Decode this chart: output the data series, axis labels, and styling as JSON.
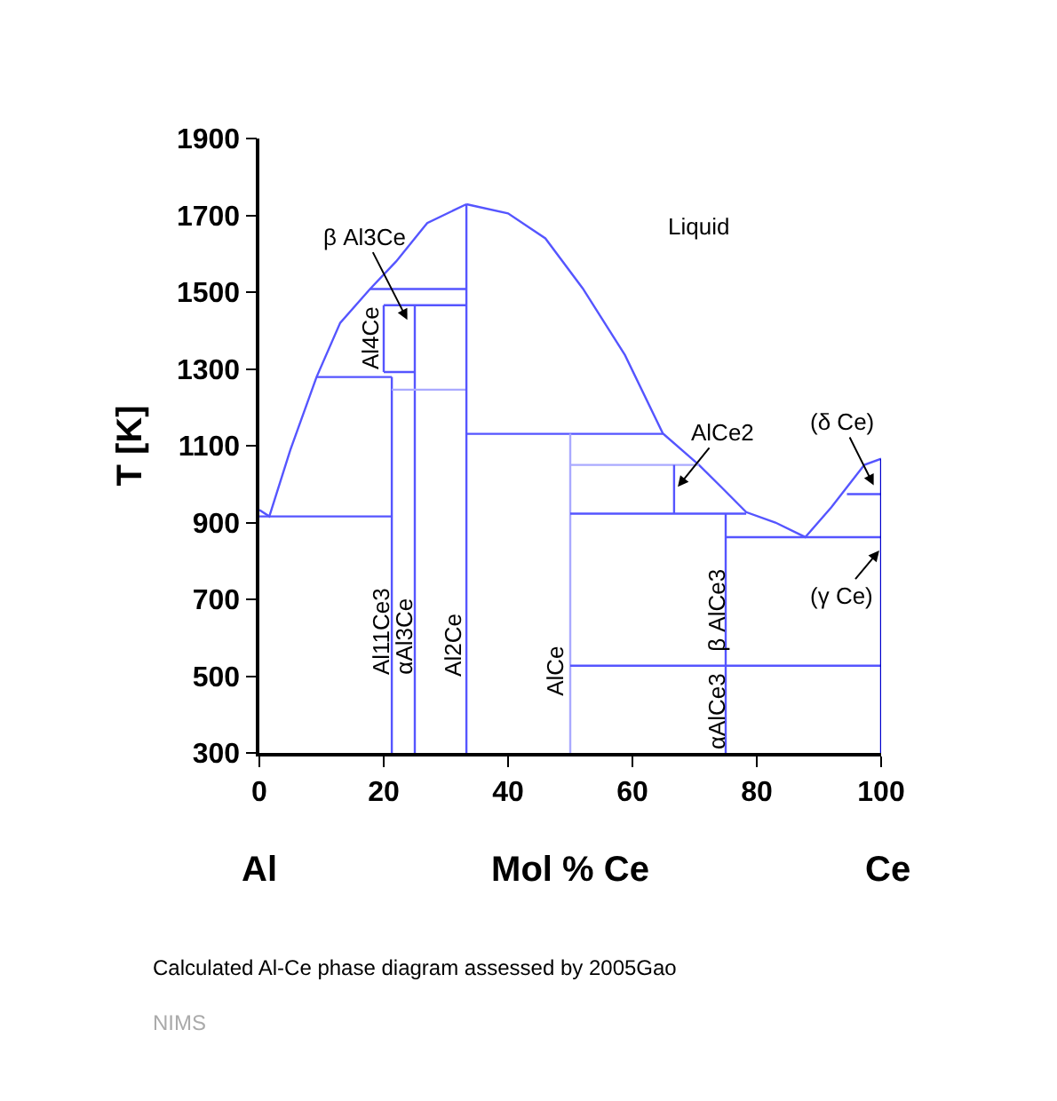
{
  "chart_data": {
    "type": "line",
    "xlabel": "Mol % Ce",
    "ylabel": "T [K]",
    "xlim": [
      0,
      100
    ],
    "xticks": [
      0,
      20,
      40,
      60,
      80,
      100
    ],
    "ylim": [
      300,
      1900
    ],
    "yticks": [
      300,
      500,
      700,
      900,
      1100,
      1300,
      1500,
      1700,
      1900
    ],
    "marker": "none",
    "line_style": "solid",
    "series": [
      {
        "color": "#5555ff",
        "x": [
          0,
          1.6,
          5,
          9.2,
          13,
          17.8,
          22,
          27,
          33.3
        ],
        "values": [
          933,
          916,
          1090,
          1279,
          1420,
          1508,
          1580,
          1680,
          1729
        ]
      },
      {
        "color": "#5555ff",
        "x": [
          33.3,
          40,
          46,
          52,
          58.8,
          64.9,
          70.7,
          74.5,
          78.3,
          83,
          87.8,
          92,
          97.3,
          100
        ],
        "values": [
          1729,
          1705,
          1640,
          1510,
          1336,
          1132,
          1050,
          989,
          927,
          900,
          862,
          940,
          1050,
          1066
        ]
      },
      {
        "color": "#5555ff",
        "x": [
          0,
          21.3
        ],
        "values": [
          916,
          916
        ]
      },
      {
        "color": "#5555ff",
        "x": [
          9.2,
          21.3
        ],
        "values": [
          1279,
          1279
        ]
      },
      {
        "color": "#5555ff",
        "x": [
          17.8,
          33.3
        ],
        "values": [
          1508,
          1508
        ]
      },
      {
        "color": "#5555ff",
        "x": [
          20,
          33.3
        ],
        "values": [
          1466,
          1466
        ]
      },
      {
        "color": "#5555ff",
        "x": [
          20,
          20
        ],
        "values": [
          1292,
          1466
        ]
      },
      {
        "color": "#5555ff",
        "x": [
          20,
          25
        ],
        "values": [
          1292,
          1292
        ]
      },
      {
        "color": "#5555ff",
        "x": [
          21.3,
          21.3
        ],
        "values": [
          300,
          1279
        ]
      },
      {
        "color": "#5555ff",
        "x": [
          25,
          25
        ],
        "values": [
          300,
          1466
        ]
      },
      {
        "color": "#aaaaff",
        "x": [
          21.3,
          33.3
        ],
        "values": [
          1246,
          1246
        ]
      },
      {
        "color": "#5555ff",
        "x": [
          33.3,
          33.3
        ],
        "values": [
          300,
          1729
        ]
      },
      {
        "color": "#5555ff",
        "x": [
          33.3,
          64.9
        ],
        "values": [
          1131,
          1131
        ]
      },
      {
        "color": "#aaaaff",
        "x": [
          50,
          50
        ],
        "values": [
          300,
          1131
        ]
      },
      {
        "color": "#aaaaff",
        "x": [
          50,
          70.7
        ],
        "values": [
          1050,
          1050
        ]
      },
      {
        "color": "#5555ff",
        "x": [
          66.7,
          66.7
        ],
        "values": [
          923,
          1050
        ]
      },
      {
        "color": "#5555ff",
        "x": [
          50,
          78.3
        ],
        "values": [
          923,
          923
        ]
      },
      {
        "color": "#5555ff",
        "x": [
          75,
          75
        ],
        "values": [
          300,
          923
        ]
      },
      {
        "color": "#5555ff",
        "x": [
          75,
          100
        ],
        "values": [
          862,
          862
        ]
      },
      {
        "color": "#5555ff",
        "x": [
          50,
          100
        ],
        "values": [
          527,
          527
        ]
      },
      {
        "color": "#5555ff",
        "x": [
          94.5,
          100
        ],
        "values": [
          974,
          974
        ]
      },
      {
        "color": "#0000cc",
        "x": [
          100,
          100
        ],
        "values": [
          300,
          1066
        ]
      }
    ],
    "annotations": [
      {
        "text": "β Al3Ce",
        "x": 23.8,
        "y": 1428
      },
      {
        "text": "AlCe2",
        "x": 67.3,
        "y": 993
      },
      {
        "text": "(δ Ce)",
        "x": 98.8,
        "y": 997
      },
      {
        "text": "(γ Ce)",
        "x": 99.7,
        "y": 827
      },
      "Liquid",
      "Al4Ce",
      "Al11Ce3",
      "αAl3Ce",
      "Al2Ce",
      "AlCe",
      "β AlCe3",
      "αAlCe3",
      "Al",
      "Ce",
      "Calculated Al-Ce phase diagram assessed by 2005Gao",
      "NIMS"
    ]
  }
}
